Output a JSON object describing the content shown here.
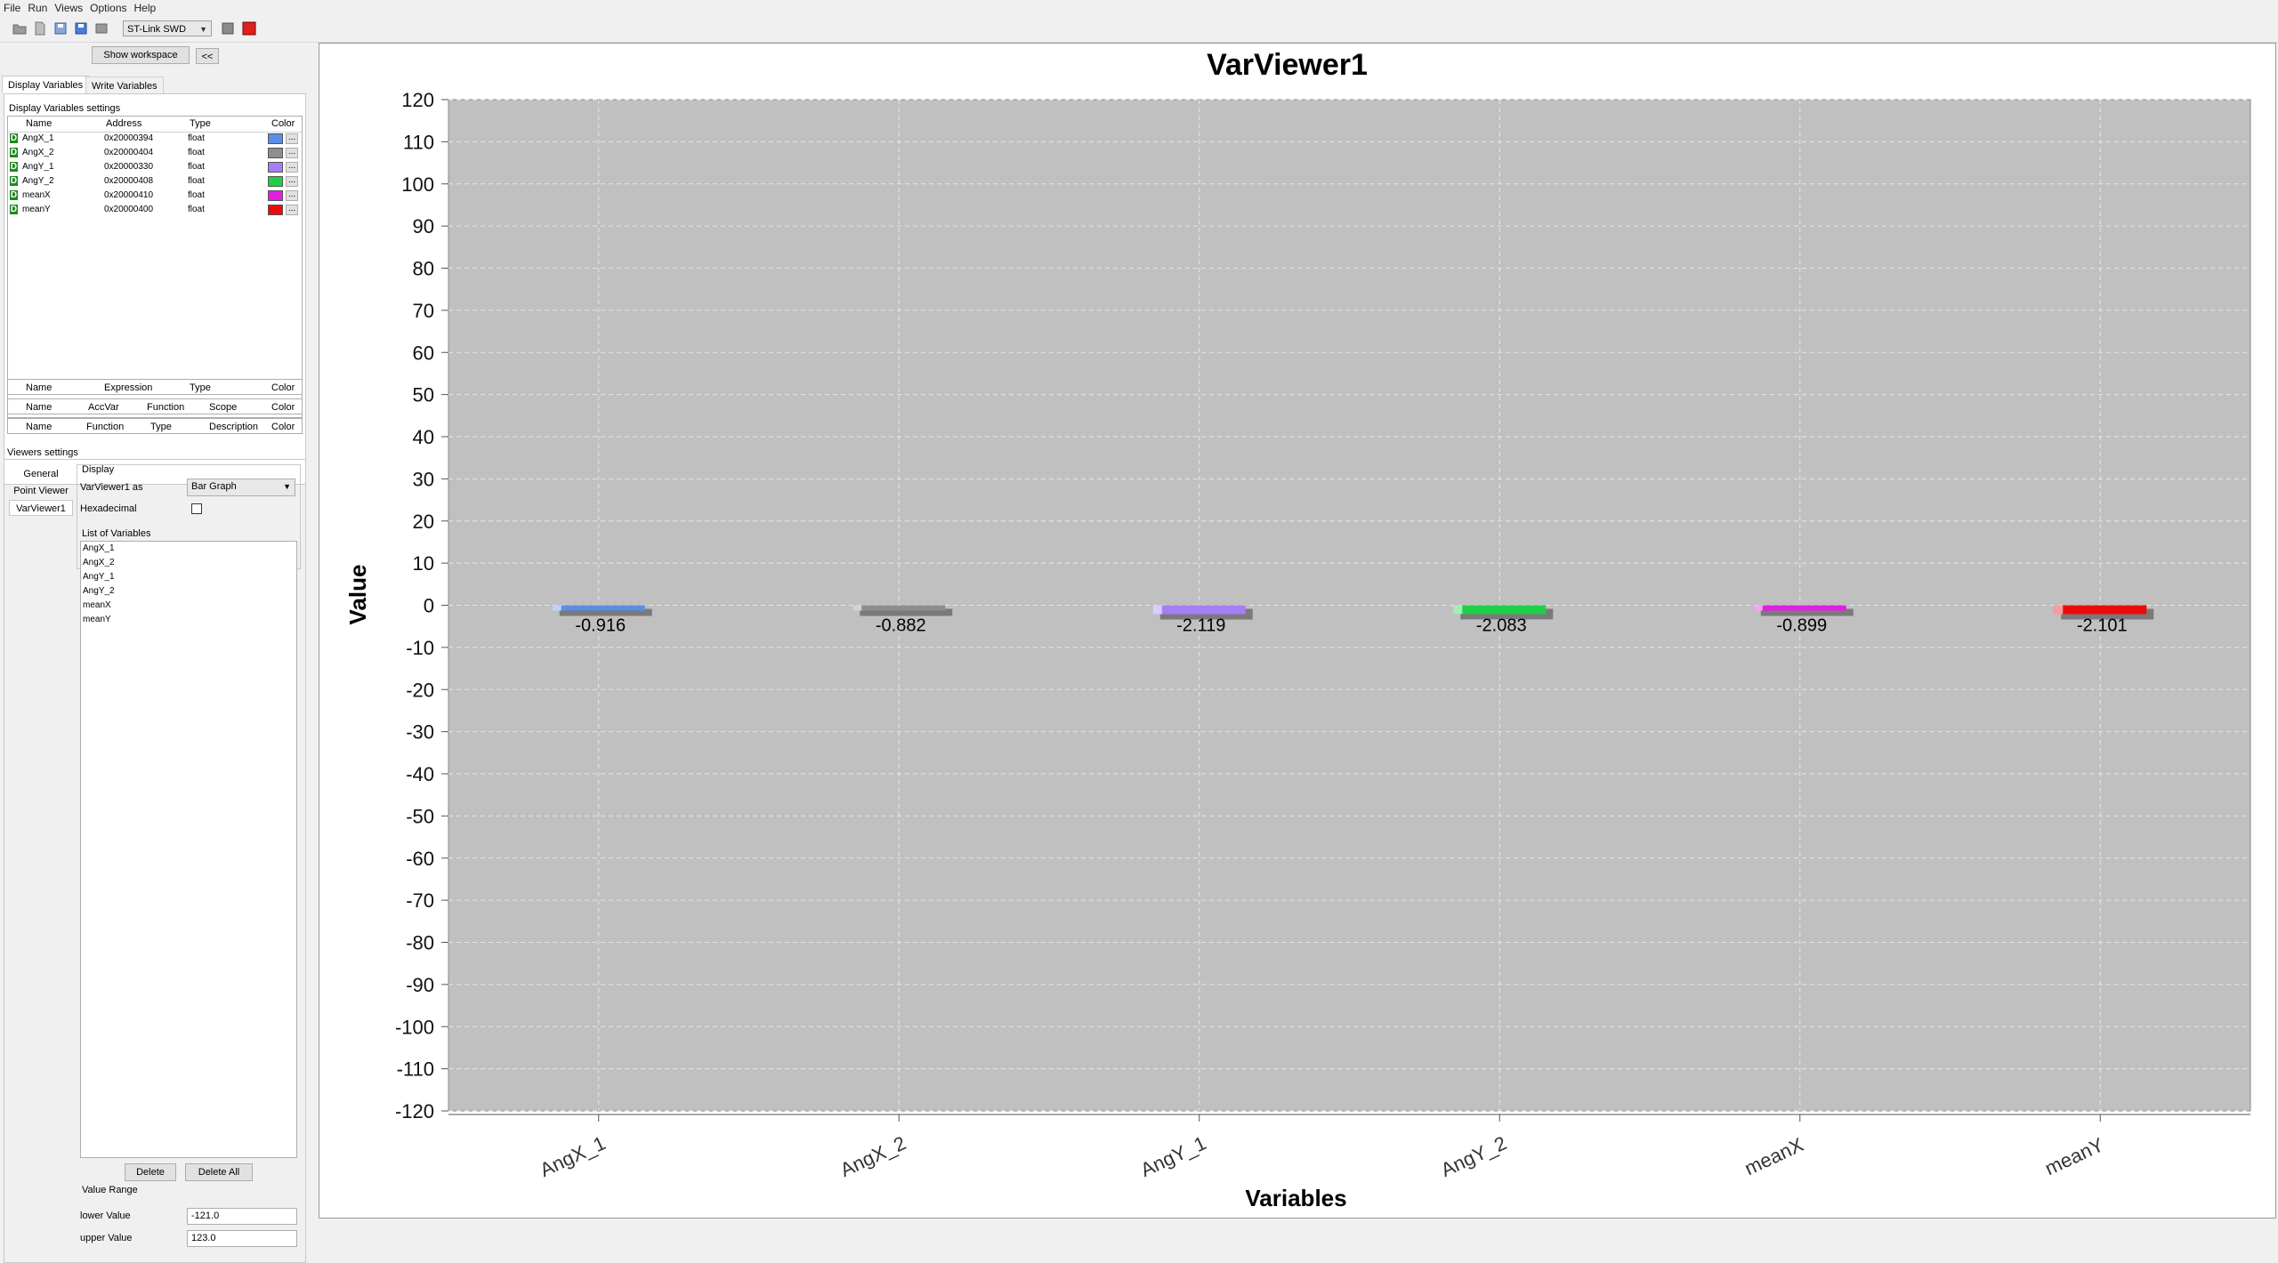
{
  "menu": {
    "file": "File",
    "run": "Run",
    "views": "Views",
    "options": "Options",
    "help": "Help"
  },
  "toolbar": {
    "connection": "ST-Link SWD",
    "icons": [
      "folder-open-icon",
      "new-file-icon",
      "save-as-icon",
      "save-icon",
      "export-icon",
      "stop-square-icon",
      "record-red-icon"
    ]
  },
  "workspace": {
    "show_label": "Show workspace",
    "collapse_label": "<<"
  },
  "tabs": {
    "display": "Display Variables",
    "write": "Write Variables"
  },
  "display_settings": {
    "title": "Display Variables settings",
    "headers": {
      "name": "Name",
      "address": "Address",
      "type": "Type",
      "color": "Color"
    },
    "rows": [
      {
        "d": "D",
        "name": "AngX_1",
        "address": "0x20000394",
        "type": "float",
        "color": "#5b8fe6"
      },
      {
        "d": "D",
        "name": "AngX_2",
        "address": "0x20000404",
        "type": "float",
        "color": "#8e8e8e"
      },
      {
        "d": "D",
        "name": "AngY_1",
        "address": "0x20000330",
        "type": "float",
        "color": "#a57ef5"
      },
      {
        "d": "D",
        "name": "AngY_2",
        "address": "0x20000408",
        "type": "float",
        "color": "#1ed048"
      },
      {
        "d": "D",
        "name": "meanX",
        "address": "0x20000410",
        "type": "float",
        "color": "#e21ee2"
      },
      {
        "d": "D",
        "name": "meanY",
        "address": "0x20000400",
        "type": "float",
        "color": "#ee0a0a"
      }
    ],
    "dots": "..."
  },
  "expr_table": {
    "name": "Name",
    "expression": "Expression",
    "type": "Type",
    "color": "Color"
  },
  "acq_table": {
    "name": "Name",
    "accvar": "AccVar",
    "function": "Function",
    "scope": "Scope",
    "color": "Color"
  },
  "func_table": {
    "name": "Name",
    "function": "Function",
    "type": "Type",
    "description": "Description",
    "color": "Color"
  },
  "viewers": {
    "title": "Viewers settings",
    "tabs": [
      "General",
      "Point Viewer",
      "VarViewer1"
    ],
    "display_title": "Display",
    "as_label": "VarViewer1 as",
    "as_value": "Bar Graph",
    "hex_label": "Hexadecimal",
    "list_title": "List of Variables",
    "list": [
      "AngX_1",
      "AngX_2",
      "AngY_1",
      "AngY_2",
      "meanX",
      "meanY"
    ],
    "delete_label": "Delete",
    "delete_all_label": "Delete All",
    "range_title": "Value Range",
    "lower_label": "lower Value",
    "lower_value": "-121.0",
    "upper_label": "upper Value",
    "upper_value": "123.0"
  },
  "chart_data": {
    "type": "bar",
    "title": "VarViewer1",
    "xlabel": "Variables",
    "ylabel": "Value",
    "ylim": [
      -120,
      120
    ],
    "yticks": [
      120,
      110,
      100,
      90,
      80,
      70,
      60,
      50,
      40,
      30,
      20,
      10,
      0,
      -10,
      -20,
      -30,
      -40,
      -50,
      -60,
      -70,
      -80,
      -90,
      -100,
      -110,
      -120
    ],
    "categories": [
      "AngX_1",
      "AngX_2",
      "AngY_1",
      "AngY_2",
      "meanX",
      "meanY"
    ],
    "values": [
      -0.916,
      -0.882,
      -2.119,
      -2.083,
      -0.899,
      -2.101
    ],
    "labels": [
      "-0.916",
      "-0.882",
      "-2.119",
      "-2.083",
      "-0.899",
      "-2.101"
    ],
    "colors": [
      "#5b8fe6",
      "#8e8e8e",
      "#a57ef5",
      "#1ed048",
      "#e21ee2",
      "#ee0a0a"
    ],
    "grid": true,
    "background": "#c0c0c0"
  }
}
